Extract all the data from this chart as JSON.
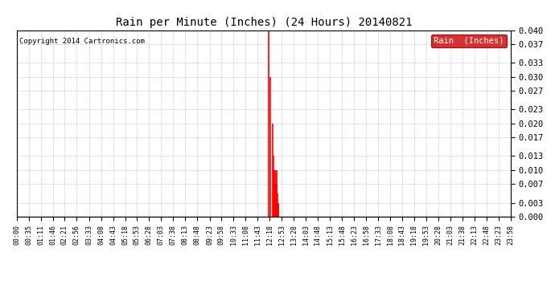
{
  "title": "Rain per Minute (Inches) (24 Hours) 20140821",
  "copyright": "Copyright 2014 Cartronics.com",
  "legend_label": "Rain  (Inches)",
  "legend_bg": "#cc0000",
  "legend_text_color": "#ffffff",
  "line_color": "#ff0000",
  "bg_color": "#ffffff",
  "plot_bg_color": "#ffffff",
  "grid_color": "#bbbbbb",
  "ylim": [
    0.0,
    0.04
  ],
  "yticks": [
    0.0,
    0.003,
    0.007,
    0.01,
    0.013,
    0.017,
    0.02,
    0.023,
    0.027,
    0.03,
    0.033,
    0.037,
    0.04
  ],
  "total_minutes": 1440,
  "rain_spikes": [
    {
      "minute": 733,
      "value": 0.04
    },
    {
      "minute": 740,
      "value": 0.03
    },
    {
      "minute": 745,
      "value": 0.02
    },
    {
      "minute": 748,
      "value": 0.013
    },
    {
      "minute": 749,
      "value": 0.01
    },
    {
      "minute": 750,
      "value": 0.01
    },
    {
      "minute": 751,
      "value": 0.01
    },
    {
      "minute": 752,
      "value": 0.007
    },
    {
      "minute": 753,
      "value": 0.005
    },
    {
      "minute": 754,
      "value": 0.003
    },
    {
      "minute": 755,
      "value": 0.003
    },
    {
      "minute": 756,
      "value": 0.01
    },
    {
      "minute": 757,
      "value": 0.01
    },
    {
      "minute": 758,
      "value": 0.007
    },
    {
      "minute": 759,
      "value": 0.005
    },
    {
      "minute": 760,
      "value": 0.003
    },
    {
      "minute": 761,
      "value": 0.003
    },
    {
      "minute": 762,
      "value": 0.003
    },
    {
      "minute": 763,
      "value": 0.003
    }
  ],
  "xtick_labels": [
    "00:00",
    "00:35",
    "01:11",
    "01:46",
    "02:21",
    "02:56",
    "03:33",
    "04:08",
    "04:43",
    "05:18",
    "05:53",
    "06:28",
    "07:03",
    "07:38",
    "08:13",
    "08:48",
    "09:23",
    "09:58",
    "10:33",
    "11:08",
    "11:43",
    "12:18",
    "12:53",
    "13:28",
    "14:03",
    "14:48",
    "15:13",
    "15:48",
    "16:23",
    "16:58",
    "17:33",
    "18:08",
    "18:43",
    "19:18",
    "19:53",
    "20:28",
    "21:03",
    "21:38",
    "22:13",
    "22:48",
    "23:23",
    "23:58"
  ]
}
